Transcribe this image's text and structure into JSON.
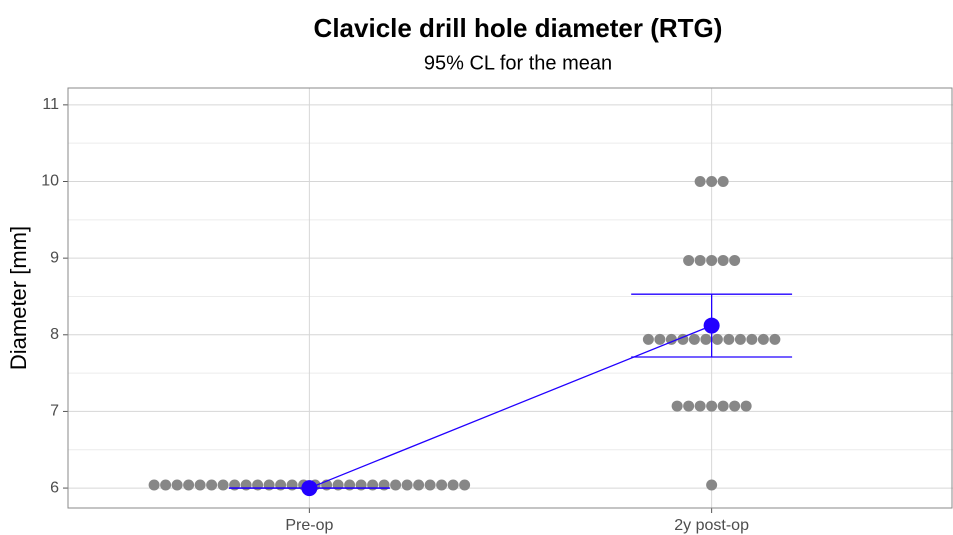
{
  "chart_data": {
    "type": "dotplot",
    "title": "Clavicle drill hole diameter (RTG)",
    "subtitle": "95% CL for the mean",
    "y_label": "Diameter [mm]",
    "categories": [
      "Pre-op",
      "2y post-op"
    ],
    "ylim": [
      5.74,
      11.22
    ],
    "yticks": [
      6,
      7,
      8,
      9,
      10,
      11
    ],
    "minor_yticks": [
      6.5,
      7.5,
      8.5,
      9.5,
      10.5
    ],
    "grid": true,
    "dot_color": "#878787",
    "dot_groups": [
      [
        {
          "y": 6.04,
          "count": 28
        }
      ],
      [
        {
          "y": 6.04,
          "count": 1
        },
        {
          "y": 7.07,
          "count": 7
        },
        {
          "y": 7.94,
          "count": 12
        },
        {
          "y": 8.97,
          "count": 5
        },
        {
          "y": 10.0,
          "count": 3
        }
      ]
    ],
    "mean": {
      "color": "#2200ff",
      "values": [
        6.0,
        8.12
      ],
      "lower": [
        6.0,
        7.71
      ],
      "upper": [
        6.0,
        8.53
      ]
    }
  }
}
